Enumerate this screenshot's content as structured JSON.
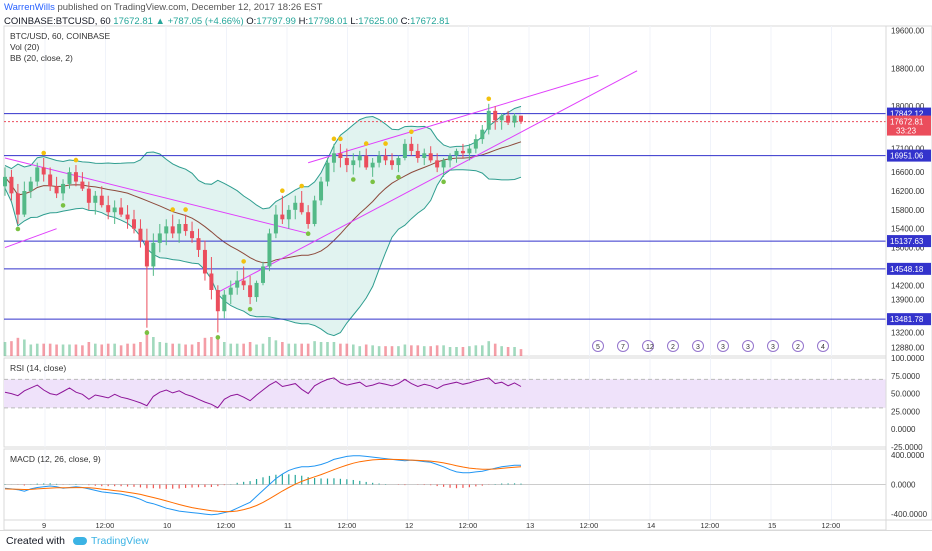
{
  "header": {
    "author": "WarrenWills",
    "published_text": " published on TradingView.com, December 12, 2017 18:26 EST",
    "symbol": "COINBASE:BTCUSD, 60",
    "last_price": "17672.81",
    "change": "▲ +787.05 (+4.66%)",
    "open_label": "O:",
    "open": "17797.99",
    "high_label": "H:",
    "high": "17798.01",
    "low_label": "L:",
    "low": "17625.00",
    "close_label": "C:",
    "close": "17672.81"
  },
  "legends": {
    "symbol_line": "BTC/USD, 60, COINBASE",
    "vol": "Vol (20)",
    "bb": "BB (20, close, 2)",
    "rsi": "RSI (14, close)",
    "macd": "MACD (12, 26, close, 9)"
  },
  "footer": {
    "created_with": "Created with",
    "brand": "TradingView"
  },
  "colors": {
    "up": "#53b987",
    "down": "#eb4d5c",
    "bb_fill": "#c8eae4",
    "bb_band": "#2e9d8f",
    "hline": "#3333cc",
    "trend": "#e040fb",
    "rsi_band": "#efe2fa",
    "macd": "#2196f3",
    "signal": "#ff6d00",
    "fractal_up": "#f2c10e",
    "fractal_dn": "#7ac142"
  },
  "chart_data": [
    {
      "type": "candlestick",
      "pane": "price",
      "x_ticks": [
        "9",
        "12:00",
        "10",
        "12:00",
        "11",
        "12:00",
        "12",
        "12:00",
        "13",
        "12:00",
        "14",
        "12:00",
        "15",
        "12:00"
      ],
      "y_ticks": [
        "19600.00",
        "18800.00",
        "18000.00",
        "17100.00",
        "16600.00",
        "16200.00",
        "15800.00",
        "15400.00",
        "15000.00",
        "14200.00",
        "13900.00",
        "13200.00",
        "12880.00"
      ],
      "y_range": [
        12700,
        19700
      ],
      "candles": [
        [
          16300,
          16700,
          16100,
          16500
        ],
        [
          16500,
          16650,
          16000,
          16150
        ],
        [
          16150,
          16350,
          15500,
          15700
        ],
        [
          15700,
          16400,
          15650,
          16200
        ],
        [
          16200,
          16500,
          16050,
          16400
        ],
        [
          16400,
          16800,
          16300,
          16700
        ],
        [
          16700,
          16900,
          16400,
          16550
        ],
        [
          16550,
          16700,
          16200,
          16300
        ],
        [
          16300,
          16500,
          16050,
          16150
        ],
        [
          16150,
          16450,
          16000,
          16350
        ],
        [
          16350,
          16700,
          16250,
          16600
        ],
        [
          16600,
          16750,
          16300,
          16400
        ],
        [
          16400,
          16600,
          16200,
          16250
        ],
        [
          16250,
          16400,
          15800,
          15950
        ],
        [
          15950,
          16200,
          15700,
          16100
        ],
        [
          16100,
          16300,
          15850,
          15900
        ],
        [
          15900,
          16100,
          15600,
          15750
        ],
        [
          15750,
          16000,
          15500,
          15850
        ],
        [
          15850,
          16050,
          15650,
          15700
        ],
        [
          15700,
          15900,
          15400,
          15600
        ],
        [
          15600,
          15800,
          15300,
          15400
        ],
        [
          15400,
          15600,
          15000,
          15150
        ],
        [
          15150,
          15400,
          13300,
          14600
        ],
        [
          14600,
          15300,
          14400,
          15100
        ],
        [
          15100,
          15500,
          14900,
          15300
        ],
        [
          15300,
          15600,
          15050,
          15450
        ],
        [
          15450,
          15700,
          15200,
          15300
        ],
        [
          15300,
          15600,
          15100,
          15500
        ],
        [
          15500,
          15700,
          15250,
          15350
        ],
        [
          15350,
          15550,
          15100,
          15200
        ],
        [
          15200,
          15400,
          14800,
          14950
        ],
        [
          14950,
          15150,
          14300,
          14450
        ],
        [
          14450,
          14800,
          13900,
          14100
        ],
        [
          14100,
          14200,
          13200,
          13650
        ],
        [
          13650,
          14100,
          13500,
          14000
        ],
        [
          14000,
          14300,
          13800,
          14150
        ],
        [
          14150,
          14500,
          14000,
          14300
        ],
        [
          14300,
          14600,
          14100,
          14200
        ],
        [
          14200,
          14400,
          13800,
          13950
        ],
        [
          13950,
          14300,
          13850,
          14250
        ],
        [
          14250,
          14700,
          14200,
          14600
        ],
        [
          14600,
          15400,
          14500,
          15300
        ],
        [
          15300,
          15900,
          15200,
          15700
        ],
        [
          15700,
          16100,
          15500,
          15600
        ],
        [
          15600,
          15900,
          15400,
          15800
        ],
        [
          15800,
          16100,
          15600,
          15950
        ],
        [
          15950,
          16200,
          15700,
          15750
        ],
        [
          15750,
          15900,
          15400,
          15500
        ],
        [
          15500,
          16100,
          15450,
          16000
        ],
        [
          16000,
          16500,
          15900,
          16400
        ],
        [
          16400,
          16900,
          16300,
          16800
        ],
        [
          16800,
          17200,
          16600,
          17000
        ],
        [
          17000,
          17200,
          16700,
          16900
        ],
        [
          16900,
          17100,
          16600,
          16750
        ],
        [
          16750,
          17000,
          16550,
          16850
        ],
        [
          16850,
          17050,
          16700,
          16950
        ],
        [
          16950,
          17100,
          16650,
          16700
        ],
        [
          16700,
          16900,
          16500,
          16800
        ],
        [
          16800,
          17050,
          16700,
          16950
        ],
        [
          16950,
          17100,
          16750,
          16850
        ],
        [
          16850,
          17000,
          16650,
          16750
        ],
        [
          16750,
          16950,
          16600,
          16900
        ],
        [
          16900,
          17300,
          16850,
          17200
        ],
        [
          17200,
          17350,
          16950,
          17050
        ],
        [
          17050,
          17200,
          16800,
          16900
        ],
        [
          16900,
          17100,
          16750,
          17000
        ],
        [
          17000,
          17150,
          16800,
          16850
        ],
        [
          16850,
          17000,
          16600,
          16700
        ],
        [
          16700,
          16900,
          16500,
          16850
        ],
        [
          16850,
          17000,
          16700,
          16950
        ],
        [
          16950,
          17100,
          16800,
          17050
        ],
        [
          17050,
          17200,
          16900,
          17000
        ],
        [
          17000,
          17200,
          16850,
          17100
        ],
        [
          17100,
          17400,
          17000,
          17300
        ],
        [
          17300,
          17600,
          17200,
          17500
        ],
        [
          17500,
          18050,
          17400,
          17900
        ],
        [
          17900,
          18000,
          17500,
          17700
        ],
        [
          17700,
          17850,
          17500,
          17800
        ],
        [
          17800,
          17900,
          17600,
          17650
        ],
        [
          17650,
          17850,
          17550,
          17800
        ],
        [
          17797.99,
          17798.01,
          17625,
          17672.81
        ]
      ],
      "horizontal_levels": [
        {
          "price": 17842.12,
          "label": "17842.12"
        },
        {
          "price": 16951.06,
          "label": "16951.06"
        },
        {
          "price": 15137.63,
          "label": "15137.63"
        },
        {
          "price": 14548.18,
          "label": "14548.18"
        },
        {
          "price": 13481.78,
          "label": "13481.78"
        }
      ],
      "current_price": {
        "price": 17672.81,
        "label": "17672.81",
        "countdown": "33:23"
      },
      "events": [
        "5",
        "7",
        "12",
        "2",
        "3",
        "3",
        "3",
        "3",
        "2",
        "4"
      ]
    },
    {
      "type": "line",
      "pane": "rsi",
      "y_ticks": [
        "100.0000",
        "75.0000",
        "50.0000",
        "25.0000",
        "0.0000",
        "-25.0000"
      ],
      "y_range": [
        -25,
        100
      ],
      "band": [
        30,
        70
      ],
      "values": [
        52,
        50,
        47,
        54,
        58,
        62,
        55,
        50,
        48,
        53,
        58,
        52,
        49,
        42,
        48,
        46,
        44,
        49,
        45,
        43,
        40,
        37,
        33,
        46,
        52,
        55,
        51,
        54,
        49,
        46,
        42,
        38,
        35,
        30,
        42,
        47,
        49,
        45,
        40,
        48,
        55,
        62,
        67,
        60,
        62,
        64,
        56,
        50,
        61,
        66,
        70,
        72,
        65,
        62,
        64,
        66,
        60,
        62,
        65,
        63,
        61,
        64,
        70,
        64,
        60,
        63,
        61,
        57,
        62,
        64,
        66,
        63,
        65,
        68,
        70,
        72,
        64,
        66,
        61,
        65,
        60
      ]
    },
    {
      "type": "line",
      "pane": "macd",
      "y_ticks": [
        "400.0000",
        "0.0000",
        "-400.0000"
      ],
      "y_range": [
        -480,
        480
      ],
      "series": [
        {
          "name": "MACD",
          "values": [
            -50,
            -60,
            -70,
            -90,
            -60,
            -40,
            -30,
            -20,
            -30,
            -50,
            -40,
            -30,
            -40,
            -60,
            -80,
            -100,
            -110,
            -120,
            -130,
            -150,
            -170,
            -200,
            -240,
            -260,
            -290,
            -320,
            -340,
            -360,
            -370,
            -380,
            -390,
            -400,
            -410,
            -400,
            -380,
            -360,
            -320,
            -280,
            -240,
            -160,
            -80,
            0,
            80,
            140,
            190,
            220,
            240,
            240,
            250,
            270,
            300,
            340,
            360,
            380,
            390,
            390,
            380,
            370,
            360,
            350,
            340,
            330,
            320,
            330,
            320,
            310,
            300,
            270,
            240,
            200,
            170,
            160,
            160,
            170,
            180,
            200,
            220,
            240,
            250,
            260,
            260
          ]
        },
        {
          "name": "Signal",
          "values": [
            -60,
            -62,
            -64,
            -68,
            -66,
            -60,
            -54,
            -48,
            -44,
            -44,
            -44,
            -42,
            -42,
            -45,
            -52,
            -62,
            -72,
            -82,
            -92,
            -104,
            -118,
            -134,
            -155,
            -176,
            -198,
            -222,
            -246,
            -270,
            -292,
            -312,
            -328,
            -342,
            -354,
            -362,
            -366,
            -366,
            -358,
            -340,
            -316,
            -284,
            -242,
            -194,
            -140,
            -88,
            -40,
            4,
            42,
            74,
            104,
            134,
            166,
            200,
            232,
            262,
            288,
            308,
            322,
            332,
            338,
            340,
            340,
            338,
            334,
            330,
            326,
            322,
            316,
            306,
            292,
            274,
            254,
            236,
            222,
            212,
            206,
            206,
            210,
            218,
            226,
            234,
            240
          ]
        }
      ]
    }
  ]
}
